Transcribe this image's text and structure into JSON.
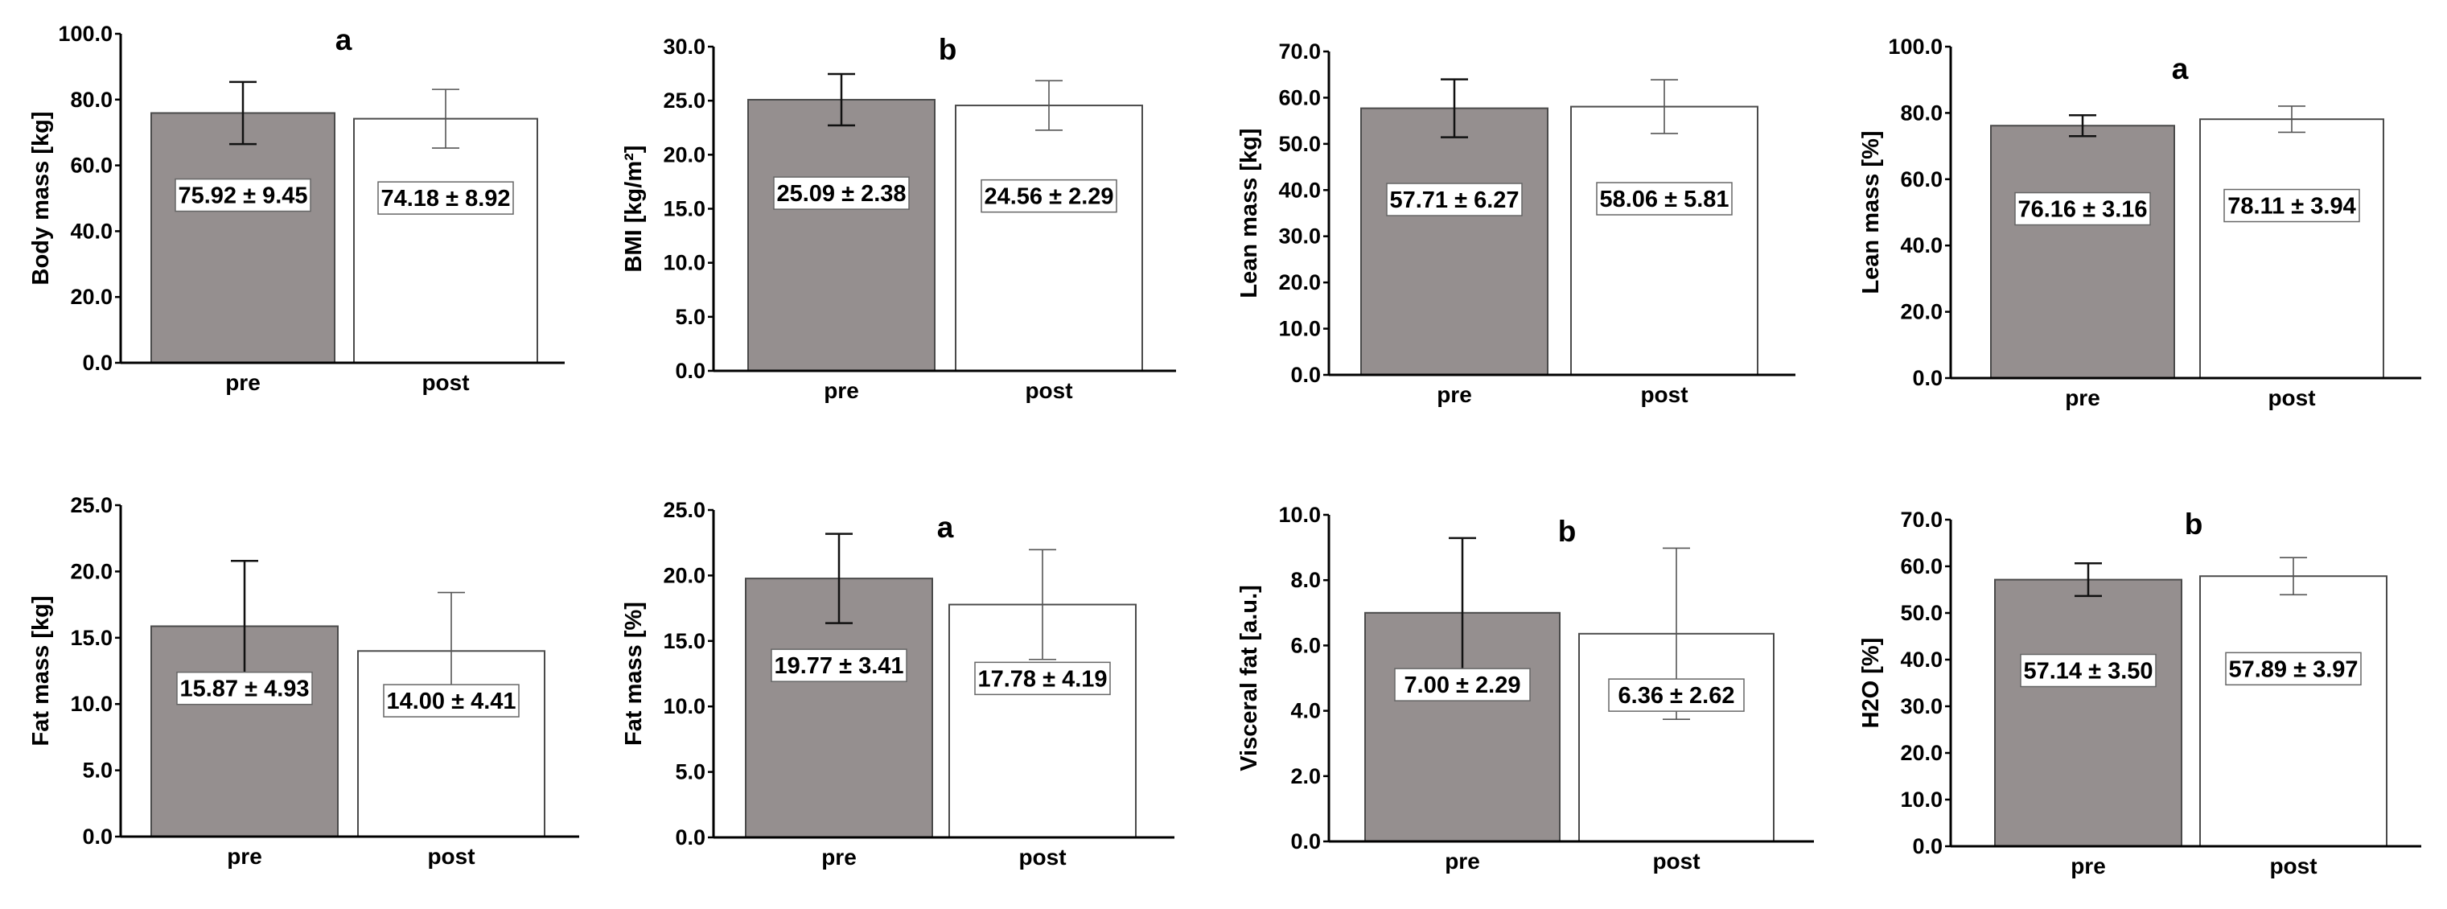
{
  "figure": {
    "colors": {
      "pre": "#958f8f",
      "post": "#ffffff",
      "axis": "#000000",
      "bar_stroke": "#4a4a4a"
    }
  },
  "chart_data": [
    {
      "type": "bar",
      "id": "body-mass-kg",
      "title": "a",
      "ylabel": "Body mass [kg]",
      "categories": [
        "pre",
        "post"
      ],
      "values": [
        75.92,
        74.18
      ],
      "errors": [
        9.45,
        8.92
      ],
      "value_labels": [
        "75.92 ± 9.45",
        "74.18 ± 8.92"
      ],
      "ylim": [
        0,
        100
      ],
      "yticks": [
        0,
        20,
        40,
        60,
        80,
        100
      ],
      "ytick_labels": [
        "0.0",
        "20.0",
        "40.0",
        "60.0",
        "80.0",
        "100.0"
      ]
    },
    {
      "type": "bar",
      "id": "bmi",
      "title": "b",
      "ylabel": "BMI [kg/m²]",
      "categories": [
        "pre",
        "post"
      ],
      "values": [
        25.09,
        24.56
      ],
      "errors": [
        2.38,
        2.29
      ],
      "value_labels": [
        "25.09 ± 2.38",
        "24.56 ± 2.29"
      ],
      "ylim": [
        0,
        30
      ],
      "yticks": [
        0,
        5,
        10,
        15,
        20,
        25,
        30
      ],
      "ytick_labels": [
        "0.0",
        "5.0",
        "10.0",
        "15.0",
        "20.0",
        "25.0",
        "30.0"
      ]
    },
    {
      "type": "bar",
      "id": "lean-mass-kg",
      "title": "",
      "ylabel": "Lean mass [kg]",
      "categories": [
        "pre",
        "post"
      ],
      "values": [
        57.71,
        58.06
      ],
      "errors": [
        6.27,
        5.81
      ],
      "value_labels": [
        "57.71 ± 6.27",
        "58.06 ± 5.81"
      ],
      "ylim": [
        0,
        70
      ],
      "yticks": [
        0,
        10,
        20,
        30,
        40,
        50,
        60,
        70
      ],
      "ytick_labels": [
        "0.0",
        "10.0",
        "20.0",
        "30.0",
        "40.0",
        "50.0",
        "60.0",
        "70.0"
      ]
    },
    {
      "type": "bar",
      "id": "lean-mass-pct",
      "title": "a",
      "ylabel": "Lean mass [%]",
      "categories": [
        "pre",
        "post"
      ],
      "values": [
        76.16,
        78.11
      ],
      "errors": [
        3.16,
        3.94
      ],
      "value_labels": [
        "76.16 ± 3.16",
        "78.11 ± 3.94"
      ],
      "ylim": [
        0,
        100
      ],
      "yticks": [
        0,
        20,
        40,
        60,
        80,
        100
      ],
      "ytick_labels": [
        "0.0",
        "20.0",
        "40.0",
        "60.0",
        "80.0",
        "100.0"
      ]
    },
    {
      "type": "bar",
      "id": "fat-mass-kg",
      "title": "",
      "ylabel": "Fat mass [kg]",
      "categories": [
        "pre",
        "post"
      ],
      "values": [
        15.87,
        14.0
      ],
      "errors": [
        4.93,
        4.41
      ],
      "value_labels": [
        "15.87 ± 4.93",
        "14.00 ± 4.41"
      ],
      "ylim": [
        0,
        25
      ],
      "yticks": [
        0,
        5,
        10,
        15,
        20,
        25
      ],
      "ytick_labels": [
        "0.0",
        "5.0",
        "10.0",
        "15.0",
        "20.0",
        "25.0"
      ]
    },
    {
      "type": "bar",
      "id": "fat-mass-pct",
      "title": "a",
      "ylabel": "Fat mass [%]",
      "categories": [
        "pre",
        "post"
      ],
      "values": [
        19.77,
        17.78
      ],
      "errors": [
        3.41,
        4.19
      ],
      "value_labels": [
        "19.77 ± 3.41",
        "17.78 ± 4.19"
      ],
      "ylim": [
        0,
        25
      ],
      "yticks": [
        0,
        5,
        10,
        15,
        20,
        25
      ],
      "ytick_labels": [
        "0.0",
        "5.0",
        "10.0",
        "15.0",
        "20.0",
        "25.0"
      ]
    },
    {
      "type": "bar",
      "id": "visceral-fat",
      "title": "b",
      "ylabel": "Visceral fat [a.u.]",
      "categories": [
        "pre",
        "post"
      ],
      "values": [
        7.0,
        6.36
      ],
      "errors": [
        2.29,
        2.62
      ],
      "value_labels": [
        "7.00 ± 2.29",
        "6.36 ± 2.62"
      ],
      "ylim": [
        0,
        10
      ],
      "yticks": [
        0,
        2,
        4,
        6,
        8,
        10
      ],
      "ytick_labels": [
        "0.0",
        "2.0",
        "4.0",
        "6.0",
        "8.0",
        "10.0"
      ]
    },
    {
      "type": "bar",
      "id": "h2o-pct",
      "title": "b",
      "ylabel": "H2O [%]",
      "categories": [
        "pre",
        "post"
      ],
      "values": [
        57.14,
        57.89
      ],
      "errors": [
        3.5,
        3.97
      ],
      "value_labels": [
        "57.14 ± 3.50",
        "57.89 ± 3.97"
      ],
      "ylim": [
        0,
        70
      ],
      "yticks": [
        0,
        10,
        20,
        30,
        40,
        50,
        60,
        70
      ],
      "ytick_labels": [
        "0.0",
        "10.0",
        "20.0",
        "30.0",
        "40.0",
        "50.0",
        "60.0",
        "70.0"
      ]
    }
  ]
}
